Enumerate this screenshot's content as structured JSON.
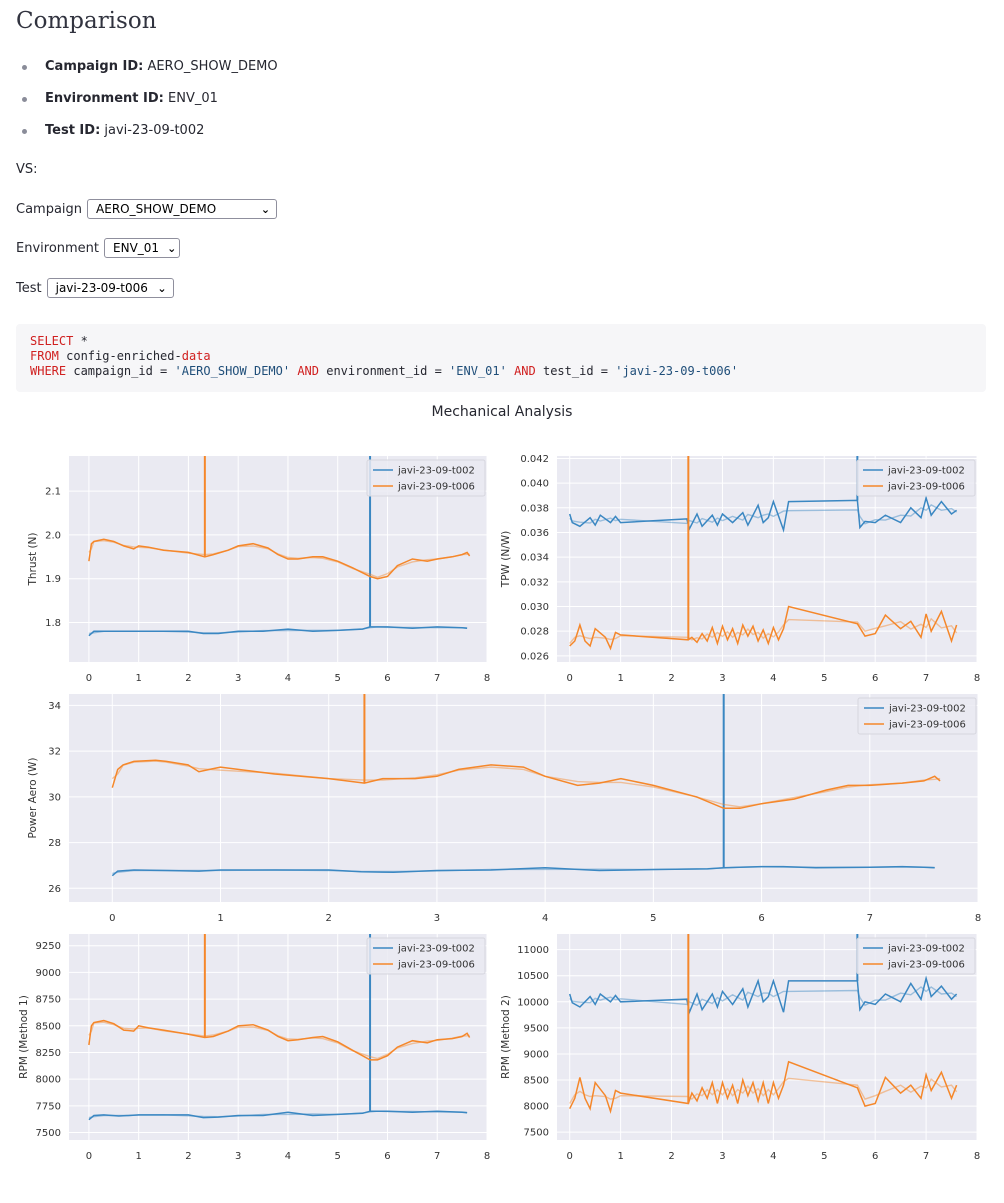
{
  "page": {
    "title": "Comparison"
  },
  "meta": [
    {
      "key": "Campaign ID:",
      "value": "AERO_SHOW_DEMO"
    },
    {
      "key": "Environment ID:",
      "value": "ENV_01"
    },
    {
      "key": "Test ID:",
      "value": "javi-23-09-t002"
    }
  ],
  "vs_label": "VS:",
  "selectors": {
    "campaign": {
      "label": "Campaign",
      "value": "AERO_SHOW_DEMO"
    },
    "environment": {
      "label": "Environment",
      "value": "ENV_01"
    },
    "test": {
      "label": "Test",
      "value": "javi-23-09-t006"
    }
  },
  "query": {
    "select_kw": "SELECT",
    "select_rest": " *",
    "from_kw": "FROM",
    "from_table": " config-enriched-",
    "from_table_kw": "data",
    "where_kw": "WHERE",
    "c1": " campaign_id = ",
    "v1": "'AERO_SHOW_DEMO'",
    "and1": " AND",
    "c2": " environment_id = ",
    "v2": "'ENV_01'",
    "and2": " AND",
    "c3": " test_id = ",
    "v3": "'javi-23-09-t006'"
  },
  "colors": {
    "series_a": "#3a87c2",
    "series_b": "#f5872a",
    "plot_bg": "#eaeaf2",
    "grid": "#ffffff"
  },
  "chart_data": {
    "title": "Mechanical Analysis",
    "type": "line",
    "series_names": [
      "javi-23-09-t002",
      "javi-23-09-t006"
    ],
    "subplots": [
      {
        "id": "thrust",
        "ylabel": "Thrust (N)",
        "xlim": [
          -0.4,
          8.0
        ],
        "ylim": [
          1.71,
          2.18
        ],
        "xticks": [
          0,
          1,
          2,
          3,
          4,
          5,
          6,
          7,
          8
        ],
        "yticks": [
          1.8,
          1.9,
          2.0,
          2.1
        ],
        "ytick_labels": [
          "1.8",
          "1.9",
          "2.0",
          "2.1"
        ],
        "series": [
          {
            "name": "javi-23-09-t002",
            "spike_x": 5.65,
            "x": [
              0,
              0.1,
              0.3,
              0.6,
              0.8,
              1.0,
              1.5,
              2.0,
              2.3,
              2.6,
              3.0,
              3.5,
              4.0,
              4.5,
              5.0,
              5.5,
              5.65,
              5.8,
              6.0,
              6.5,
              7.0,
              7.5,
              7.6
            ],
            "y": [
              1.77,
              1.78,
              1.78,
              1.78,
              1.78,
              1.78,
              1.78,
              1.78,
              1.775,
              1.775,
              1.78,
              1.78,
              1.785,
              1.78,
              1.782,
              1.785,
              1.79,
              1.79,
              1.79,
              1.787,
              1.79,
              1.788,
              1.787
            ]
          },
          {
            "name": "javi-23-09-t006",
            "spike_x": 2.33,
            "x": [
              0,
              0.05,
              0.1,
              0.3,
              0.5,
              0.7,
              0.9,
              1.0,
              1.2,
              1.5,
              2.0,
              2.33,
              2.5,
              2.8,
              3.0,
              3.3,
              3.6,
              3.8,
              4.0,
              4.2,
              4.5,
              4.7,
              5.0,
              5.3,
              5.65,
              5.8,
              6.0,
              6.2,
              6.5,
              6.8,
              7.0,
              7.3,
              7.5,
              7.6,
              7.65
            ],
            "y": [
              1.94,
              1.98,
              1.985,
              1.99,
              1.985,
              1.975,
              1.968,
              1.975,
              1.972,
              1.965,
              1.96,
              1.95,
              1.955,
              1.965,
              1.975,
              1.98,
              1.97,
              1.955,
              1.945,
              1.945,
              1.95,
              1.95,
              1.94,
              1.925,
              1.905,
              1.9,
              1.905,
              1.93,
              1.945,
              1.94,
              1.945,
              1.95,
              1.955,
              1.96,
              1.952
            ]
          }
        ]
      },
      {
        "id": "tpw",
        "ylabel": "TPW (N/W)",
        "xlim": [
          -0.25,
          8.0
        ],
        "ylim": [
          0.0255,
          0.0422
        ],
        "xticks": [
          0,
          1,
          2,
          3,
          4,
          5,
          6,
          7,
          8
        ],
        "yticks": [
          0.026,
          0.028,
          0.03,
          0.032,
          0.034,
          0.036,
          0.038,
          0.04,
          0.042
        ],
        "ytick_labels": [
          "0.026",
          "0.028",
          "0.030",
          "0.032",
          "0.034",
          "0.036",
          "0.038",
          "0.040",
          "0.042"
        ],
        "series": [
          {
            "name": "javi-23-09-t002",
            "spike_x": 5.65,
            "x": [
              0,
              0.05,
              0.2,
              0.4,
              0.5,
              0.6,
              0.8,
              0.9,
              1.0,
              2.3,
              2.35,
              2.5,
              2.6,
              2.8,
              2.9,
              3.0,
              3.2,
              3.4,
              3.5,
              3.7,
              3.8,
              3.9,
              4.0,
              4.2,
              4.3,
              5.65,
              5.7,
              5.8,
              6.0,
              6.2,
              6.5,
              6.7,
              6.9,
              7.0,
              7.1,
              7.3,
              7.5,
              7.6
            ],
            "y": [
              0.0375,
              0.0368,
              0.0365,
              0.0372,
              0.0366,
              0.0374,
              0.0368,
              0.0373,
              0.0368,
              0.0371,
              0.0363,
              0.0375,
              0.0365,
              0.0374,
              0.0366,
              0.0375,
              0.0368,
              0.0376,
              0.0366,
              0.0382,
              0.0368,
              0.0372,
              0.0385,
              0.0362,
              0.0385,
              0.0386,
              0.0364,
              0.0369,
              0.0368,
              0.0374,
              0.0368,
              0.038,
              0.0372,
              0.0388,
              0.0374,
              0.0385,
              0.0375,
              0.0378
            ]
          },
          {
            "name": "javi-23-09-t006",
            "spike_x": 2.33,
            "x": [
              0,
              0.1,
              0.2,
              0.3,
              0.4,
              0.5,
              0.7,
              0.8,
              0.9,
              1.0,
              2.33,
              2.4,
              2.5,
              2.6,
              2.7,
              2.8,
              2.9,
              3.0,
              3.1,
              3.2,
              3.3,
              3.4,
              3.5,
              3.6,
              3.7,
              3.8,
              3.9,
              4.0,
              4.1,
              4.2,
              4.3,
              5.65,
              5.8,
              6.0,
              6.2,
              6.5,
              6.7,
              6.9,
              7.0,
              7.1,
              7.3,
              7.5,
              7.6
            ],
            "y": [
              0.0268,
              0.0272,
              0.0285,
              0.0272,
              0.0268,
              0.0282,
              0.0275,
              0.0266,
              0.0279,
              0.0277,
              0.0273,
              0.0275,
              0.0271,
              0.0278,
              0.0272,
              0.0283,
              0.027,
              0.0284,
              0.0273,
              0.0282,
              0.027,
              0.0285,
              0.0276,
              0.0284,
              0.0272,
              0.0281,
              0.027,
              0.0283,
              0.0273,
              0.0282,
              0.03,
              0.0286,
              0.0276,
              0.0278,
              0.0293,
              0.0282,
              0.0288,
              0.0275,
              0.0294,
              0.028,
              0.0296,
              0.0272,
              0.0285
            ]
          }
        ]
      },
      {
        "id": "power",
        "ylabel": "Power Aero (W)",
        "xlim": [
          -0.4,
          8.0
        ],
        "ylim": [
          25.4,
          34.5
        ],
        "xticks": [
          0,
          1,
          2,
          3,
          4,
          5,
          6,
          7,
          8
        ],
        "yticks": [
          26,
          28,
          30,
          32,
          34
        ],
        "ytick_labels": [
          "26",
          "28",
          "30",
          "32",
          "34"
        ],
        "series": [
          {
            "name": "javi-23-09-t002",
            "spike_x": 5.65,
            "x": [
              0,
              0.05,
              0.2,
              0.5,
              0.8,
              1.0,
              1.5,
              2.0,
              2.3,
              2.6,
              3.0,
              3.5,
              4.0,
              4.5,
              5.0,
              5.5,
              5.65,
              5.8,
              6.0,
              6.2,
              6.5,
              7.0,
              7.3,
              7.5,
              7.6
            ],
            "y": [
              26.55,
              26.75,
              26.8,
              26.78,
              26.75,
              26.8,
              26.8,
              26.8,
              26.72,
              26.7,
              26.78,
              26.8,
              26.9,
              26.78,
              26.82,
              26.85,
              26.9,
              26.92,
              26.95,
              26.95,
              26.9,
              26.92,
              26.95,
              26.92,
              26.9
            ]
          },
          {
            "name": "javi-23-09-t006",
            "spike_x": 2.33,
            "x": [
              0,
              0.05,
              0.1,
              0.2,
              0.4,
              0.5,
              0.7,
              0.8,
              0.9,
              1.0,
              1.5,
              2.0,
              2.33,
              2.5,
              2.8,
              3.0,
              3.2,
              3.5,
              3.8,
              4.0,
              4.3,
              4.5,
              4.7,
              5.0,
              5.4,
              5.65,
              5.8,
              6.0,
              6.3,
              6.6,
              6.8,
              7.0,
              7.3,
              7.5,
              7.6,
              7.65
            ],
            "y": [
              30.4,
              31.2,
              31.4,
              31.55,
              31.6,
              31.55,
              31.4,
              31.1,
              31.2,
              31.3,
              31.0,
              30.8,
              30.6,
              30.8,
              30.8,
              30.9,
              31.2,
              31.4,
              31.3,
              30.9,
              30.5,
              30.6,
              30.8,
              30.5,
              30.0,
              29.5,
              29.5,
              29.7,
              29.9,
              30.3,
              30.5,
              30.5,
              30.6,
              30.7,
              30.9,
              30.7
            ]
          }
        ]
      },
      {
        "id": "rpm1",
        "ylabel": "RPM (Method 1)",
        "xlim": [
          -0.4,
          8.0
        ],
        "ylim": [
          7430,
          9360
        ],
        "xticks": [
          0,
          1,
          2,
          3,
          4,
          5,
          6,
          7,
          8
        ],
        "yticks": [
          7500,
          7750,
          8000,
          8250,
          8500,
          8750,
          9000,
          9250
        ],
        "ytick_labels": [
          "7500",
          "7750",
          "8000",
          "8250",
          "8500",
          "8750",
          "9000",
          "9250"
        ],
        "series": [
          {
            "name": "javi-23-09-t002",
            "spike_x": 5.65,
            "x": [
              0,
              0.1,
              0.3,
              0.6,
              0.8,
              1.0,
              1.5,
              2.0,
              2.3,
              2.6,
              3.0,
              3.5,
              4.0,
              4.5,
              5.0,
              5.5,
              5.65,
              5.8,
              6.0,
              6.5,
              7.0,
              7.5,
              7.6
            ],
            "y": [
              7620,
              7660,
              7665,
              7655,
              7660,
              7665,
              7665,
              7665,
              7640,
              7645,
              7660,
              7660,
              7690,
              7660,
              7670,
              7680,
              7700,
              7700,
              7700,
              7690,
              7700,
              7690,
              7685
            ]
          },
          {
            "name": "javi-23-09-t006",
            "spike_x": 2.33,
            "x": [
              0,
              0.05,
              0.1,
              0.3,
              0.5,
              0.7,
              0.9,
              1.0,
              1.2,
              1.5,
              2.0,
              2.33,
              2.5,
              2.8,
              3.0,
              3.3,
              3.6,
              3.8,
              4.0,
              4.2,
              4.5,
              4.7,
              5.0,
              5.3,
              5.65,
              5.8,
              6.0,
              6.2,
              6.5,
              6.8,
              7.0,
              7.3,
              7.5,
              7.6,
              7.65
            ],
            "y": [
              8320,
              8500,
              8530,
              8550,
              8520,
              8460,
              8450,
              8500,
              8480,
              8460,
              8420,
              8390,
              8400,
              8450,
              8500,
              8510,
              8460,
              8400,
              8360,
              8370,
              8390,
              8400,
              8350,
              8270,
              8180,
              8180,
              8220,
              8300,
              8360,
              8340,
              8370,
              8380,
              8400,
              8430,
              8390
            ]
          }
        ]
      },
      {
        "id": "rpm2",
        "ylabel": "RPM (Method 2)",
        "xlim": [
          -0.25,
          8.0
        ],
        "ylim": [
          7350,
          11300
        ],
        "xticks": [
          0,
          1,
          2,
          3,
          4,
          5,
          6,
          7,
          8
        ],
        "yticks": [
          7500,
          8000,
          8500,
          9000,
          9500,
          10000,
          10500,
          11000
        ],
        "ytick_labels": [
          "7500",
          "8000",
          "8500",
          "9000",
          "9500",
          "10000",
          "10500",
          "11000"
        ],
        "series": [
          {
            "name": "javi-23-09-t002",
            "spike_x": 5.65,
            "x": [
              0,
              0.05,
              0.2,
              0.4,
              0.5,
              0.6,
              0.8,
              0.9,
              1.0,
              2.3,
              2.35,
              2.5,
              2.6,
              2.8,
              2.9,
              3.0,
              3.2,
              3.4,
              3.5,
              3.7,
              3.8,
              3.9,
              4.0,
              4.2,
              4.3,
              5.65,
              5.7,
              5.8,
              6.0,
              6.2,
              6.5,
              6.7,
              6.9,
              7.0,
              7.1,
              7.3,
              7.5,
              7.6
            ],
            "y": [
              10150,
              9980,
              9900,
              10100,
              9950,
              10150,
              10000,
              10120,
              10000,
              10050,
              9800,
              10150,
              9850,
              10150,
              9900,
              10200,
              9950,
              10250,
              9900,
              10400,
              10000,
              10100,
              10400,
              9800,
              10400,
              10400,
              9850,
              10000,
              9950,
              10150,
              10000,
              10350,
              10050,
              10450,
              10100,
              10300,
              10050,
              10150
            ]
          },
          {
            "name": "javi-23-09-t006",
            "spike_x": 2.33,
            "x": [
              0,
              0.1,
              0.2,
              0.3,
              0.4,
              0.5,
              0.7,
              0.8,
              0.9,
              1.0,
              2.33,
              2.4,
              2.5,
              2.6,
              2.7,
              2.8,
              2.9,
              3.0,
              3.1,
              3.2,
              3.3,
              3.4,
              3.5,
              3.6,
              3.7,
              3.8,
              3.9,
              4.0,
              4.1,
              4.2,
              4.3,
              5.65,
              5.8,
              6.0,
              6.2,
              6.5,
              6.7,
              6.9,
              7.0,
              7.1,
              7.3,
              7.5,
              7.6
            ],
            "y": [
              7950,
              8150,
              8550,
              8150,
              7950,
              8450,
              8200,
              7900,
              8300,
              8250,
              8050,
              8250,
              8100,
              8350,
              8150,
              8450,
              8050,
              8450,
              8150,
              8400,
              8050,
              8500,
              8200,
              8450,
              8100,
              8450,
              8050,
              8450,
              8150,
              8400,
              8850,
              8350,
              8000,
              8050,
              8550,
              8250,
              8400,
              8150,
              8600,
              8300,
              8650,
              8150,
              8400
            ]
          }
        ]
      }
    ]
  }
}
